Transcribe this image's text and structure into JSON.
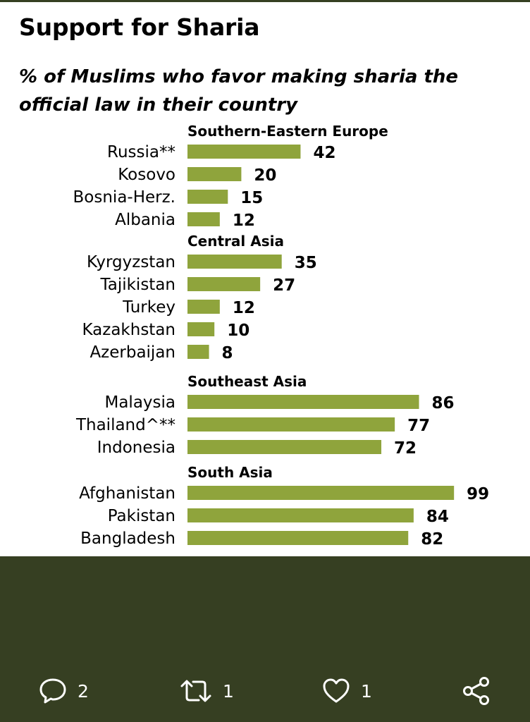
{
  "header": {
    "title": "Support for Sharia",
    "subtitle": "% of Muslims who favor making sharia the official law in their country"
  },
  "chart_data": {
    "type": "bar",
    "orientation": "horizontal",
    "title": "Support for Sharia",
    "subtitle": "% of Muslims who favor making sharia the official law in their country",
    "xlim": [
      0,
      100
    ],
    "bar_color": "#8fa43c",
    "groups": [
      {
        "name": "Southern-Eastern Europe",
        "items": [
          {
            "label": "Russia**",
            "value": 42
          },
          {
            "label": "Kosovo",
            "value": 20
          },
          {
            "label": "Bosnia-Herz.",
            "value": 15
          },
          {
            "label": "Albania",
            "value": 12
          }
        ]
      },
      {
        "name": "Central Asia",
        "items": [
          {
            "label": "Kyrgyzstan",
            "value": 35
          },
          {
            "label": "Tajikistan",
            "value": 27
          },
          {
            "label": "Turkey",
            "value": 12
          },
          {
            "label": "Kazakhstan",
            "value": 10
          },
          {
            "label": "Azerbaijan",
            "value": 8
          }
        ]
      },
      {
        "name": "Southeast Asia",
        "items": [
          {
            "label": "Malaysia",
            "value": 86
          },
          {
            "label": "Thailand^**",
            "value": 77
          },
          {
            "label": "Indonesia",
            "value": 72
          }
        ]
      },
      {
        "name": "South Asia",
        "items": [
          {
            "label": "Afghanistan",
            "value": 99
          },
          {
            "label": "Pakistan",
            "value": 84
          },
          {
            "label": "Bangladesh",
            "value": 82
          }
        ]
      }
    ]
  },
  "actions": {
    "reply_count": "2",
    "retweet_count": "1",
    "like_count": "1",
    "reply_icon": "reply-bubble-icon",
    "retweet_icon": "retweet-icon",
    "like_icon": "heart-icon",
    "share_icon": "share-icon"
  },
  "colors": {
    "bar": "#8fa43c",
    "background": "#363f22",
    "card": "#ffffff"
  }
}
